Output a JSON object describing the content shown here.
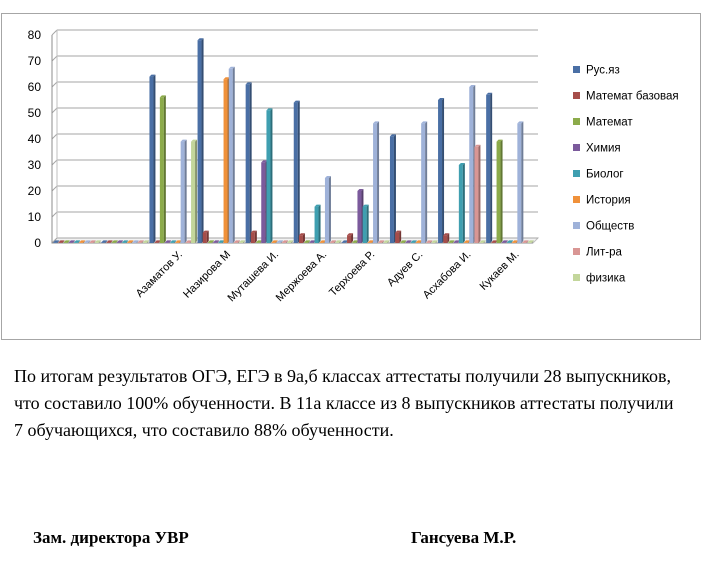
{
  "chart_data": {
    "type": "bar",
    "title": "",
    "xlabel": "",
    "ylabel": "",
    "ylim": [
      0,
      80
    ],
    "yticks": [
      0,
      10,
      20,
      30,
      40,
      50,
      60,
      70,
      80
    ],
    "grid": true,
    "legend_position": "right",
    "categories": [
      "",
      "",
      "Азаматов У.",
      "Назирова  М",
      "Муташева  И.",
      "Мержоева  А.",
      "Терхоева  Р.",
      "Адуев  С.",
      "Асхабова  И.",
      "Кукаев  М."
    ],
    "series": [
      {
        "name": "Рус.яз",
        "color": "#4a6fa5",
        "values": [
          0,
          0,
          64,
          78,
          61,
          54,
          0,
          41,
          55,
          57
        ]
      },
      {
        "name": "Математ базовая",
        "color": "#a64d4a",
        "values": [
          0,
          0,
          0,
          4,
          4,
          3,
          3,
          4,
          3,
          0
        ]
      },
      {
        "name": "Математ",
        "color": "#8cab4a",
        "values": [
          0,
          0,
          56,
          0,
          0,
          0,
          0,
          0,
          0,
          39
        ]
      },
      {
        "name": "Химия",
        "color": "#7b5a9c",
        "values": [
          0,
          0,
          0,
          0,
          31,
          0,
          20,
          0,
          0,
          0
        ]
      },
      {
        "name": "Биолог",
        "color": "#3f9fb0",
        "values": [
          0,
          0,
          0,
          0,
          51,
          14,
          14,
          0,
          30,
          0
        ]
      },
      {
        "name": "История",
        "color": "#f0913a",
        "values": [
          0,
          0,
          0,
          63,
          0,
          0,
          0,
          0,
          0,
          0
        ]
      },
      {
        "name": "Обществ",
        "color": "#9fb2d9",
        "values": [
          0,
          0,
          39,
          67,
          0,
          25,
          46,
          46,
          60,
          46
        ]
      },
      {
        "name": "Лит-ра",
        "color": "#d99694",
        "values": [
          0,
          0,
          0,
          0,
          0,
          0,
          0,
          0,
          37,
          0
        ]
      },
      {
        "name": "физика",
        "color": "#c3d69b",
        "values": [
          0,
          0,
          39,
          0,
          0,
          0,
          0,
          0,
          0,
          0
        ]
      }
    ]
  },
  "report": {
    "paragraph": "По итогам результатов ОГЭ, ЕГЭ в 9а,б классах аттестаты получили 28 выпускников, что составило 100%  обученности. В 11а классе из 8 выпускников аттестаты получили 7 обучающихся, что  составило 88% обученности."
  },
  "signature": {
    "position": "Зам. директора УВР",
    "name": "Гансуева М.Р."
  }
}
